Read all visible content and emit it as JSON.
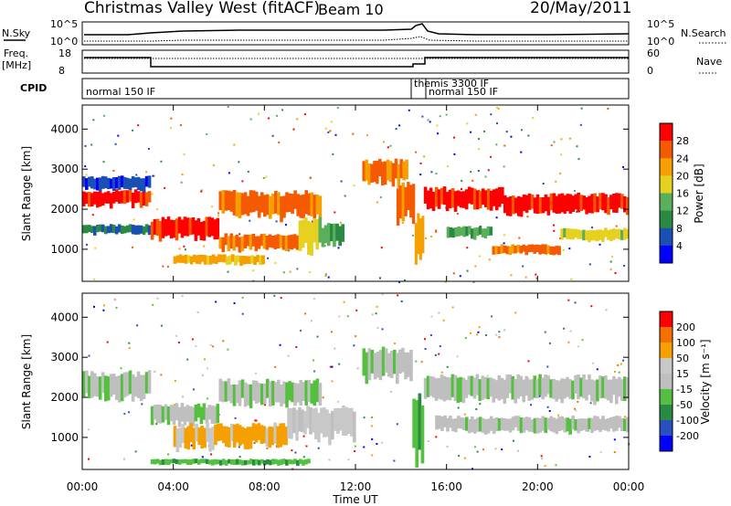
{
  "header": {
    "title": "Christmas Valley West (fitACF)",
    "beam": "Beam 10",
    "date": "20/May/2011"
  },
  "summary": {
    "nsky_label": "N.Sky",
    "nsky_ticks": [
      "10^5",
      "10^0"
    ],
    "nsearch_label": "N.Search",
    "freq_label": "Freq.",
    "freq_unit": "[MHz]",
    "freq_ticks": [
      "18",
      "8"
    ],
    "nave_ticks": [
      "60",
      "0"
    ],
    "nave_label": "Nave",
    "cpid_label": "CPID",
    "cpid_segments": [
      {
        "label": "normal 150 IF",
        "start": 0.0
      },
      {
        "label": "themis 3300 IF",
        "start": 14.5
      },
      {
        "label": "normal 150 IF",
        "start": 15.0
      }
    ]
  },
  "colors": {
    "power_scale": [
      "#0000ff",
      "#1a4fb4",
      "#2a8a44",
      "#5ab05a",
      "#e6d020",
      "#f5a000",
      "#f55a00",
      "#ff0000"
    ],
    "velocity_scale": [
      "#0000ff",
      "#2a4fc0",
      "#2a8a44",
      "#55c040",
      "#bfbfbf",
      "#c8c8c8",
      "#f5a000",
      "#f57000",
      "#ff0000"
    ]
  },
  "chart_data": [
    {
      "type": "heatmap",
      "name": "power",
      "ylabel": "Slant Range [km]",
      "y_ticks": [
        1000,
        2000,
        3000,
        4000
      ],
      "ylim": [
        200,
        4600
      ],
      "xlim": [
        0,
        24
      ],
      "colorbar_label": "Power [dB]",
      "colorbar_ticks": [
        "28",
        "24",
        "20",
        "16",
        "12",
        "8",
        "4"
      ],
      "features": [
        {
          "t0": 0.0,
          "t1": 3.0,
          "r0": 2050,
          "r1": 2450,
          "level": 7
        },
        {
          "t0": 0.0,
          "t1": 3.0,
          "r0": 2450,
          "r1": 2800,
          "level": 1
        },
        {
          "t0": 0.0,
          "t1": 3.0,
          "r0": 1350,
          "r1": 1600,
          "level": 2
        },
        {
          "t0": 3.0,
          "t1": 6.0,
          "r0": 1200,
          "r1": 1750,
          "level": 7
        },
        {
          "t0": 6.0,
          "t1": 10.5,
          "r0": 1750,
          "r1": 2400,
          "level": 6
        },
        {
          "t0": 6.0,
          "t1": 9.5,
          "r0": 950,
          "r1": 1350,
          "level": 6
        },
        {
          "t0": 9.5,
          "t1": 10.5,
          "r0": 900,
          "r1": 1750,
          "level": 4
        },
        {
          "t0": 10.5,
          "t1": 11.5,
          "r0": 1000,
          "r1": 1600,
          "level": 3
        },
        {
          "t0": 4.0,
          "t1": 8.0,
          "r0": 600,
          "r1": 850,
          "level": 5
        },
        {
          "t0": 12.3,
          "t1": 14.3,
          "r0": 2600,
          "r1": 3200,
          "level": 6
        },
        {
          "t0": 13.8,
          "t1": 14.6,
          "r0": 1600,
          "r1": 2600,
          "level": 6
        },
        {
          "t0": 14.6,
          "t1": 15.0,
          "r0": 600,
          "r1": 1800,
          "level": 5
        },
        {
          "t0": 15.0,
          "t1": 18.5,
          "r0": 1950,
          "r1": 2500,
          "level": 7
        },
        {
          "t0": 18.5,
          "t1": 24.0,
          "r0": 1850,
          "r1": 2350,
          "level": 7
        },
        {
          "t0": 16.0,
          "t1": 18.0,
          "r0": 1250,
          "r1": 1550,
          "level": 3
        },
        {
          "t0": 18.0,
          "t1": 21.0,
          "r0": 850,
          "r1": 1100,
          "level": 6
        },
        {
          "t0": 21.0,
          "t1": 24.0,
          "r0": 1200,
          "r1": 1500,
          "level": 4
        }
      ]
    },
    {
      "type": "heatmap",
      "name": "velocity",
      "ylabel": "Slant Range [km]",
      "xlabel": "Time UT",
      "y_ticks": [
        1000,
        2000,
        3000,
        4000
      ],
      "ylim": [
        200,
        4600
      ],
      "xlim": [
        0,
        24
      ],
      "x_ticks": [
        "00:00",
        "04:00",
        "08:00",
        "12:00",
        "16:00",
        "20:00",
        "00:00"
      ],
      "colorbar_label": "Velocity [m s⁻¹]",
      "colorbar_ticks": [
        "200",
        "100",
        "50",
        "15",
        "-15",
        "-50",
        "-100",
        "-200"
      ],
      "features": [
        {
          "t0": 0.0,
          "t1": 3.0,
          "r0": 1900,
          "r1": 2600,
          "level": 4
        },
        {
          "t0": 3.0,
          "t1": 6.0,
          "r0": 1300,
          "r1": 1800,
          "level": 4
        },
        {
          "t0": 6.0,
          "t1": 10.5,
          "r0": 1750,
          "r1": 2400,
          "level": 4
        },
        {
          "t0": 4.0,
          "t1": 9.0,
          "r0": 700,
          "r1": 1300,
          "level": 6
        },
        {
          "t0": 9.0,
          "t1": 12.0,
          "r0": 900,
          "r1": 1700,
          "level": 5
        },
        {
          "t0": 12.3,
          "t1": 14.5,
          "r0": 2400,
          "r1": 3200,
          "level": 4
        },
        {
          "t0": 14.5,
          "t1": 15.0,
          "r0": 300,
          "r1": 2000,
          "level": 3
        },
        {
          "t0": 15.0,
          "t1": 24.0,
          "r0": 1850,
          "r1": 2500,
          "level": 4
        },
        {
          "t0": 15.5,
          "t1": 24.0,
          "r0": 1100,
          "r1": 1500,
          "level": 4
        },
        {
          "t0": 3.0,
          "t1": 10.0,
          "r0": 300,
          "r1": 450,
          "level": 3
        }
      ]
    }
  ]
}
